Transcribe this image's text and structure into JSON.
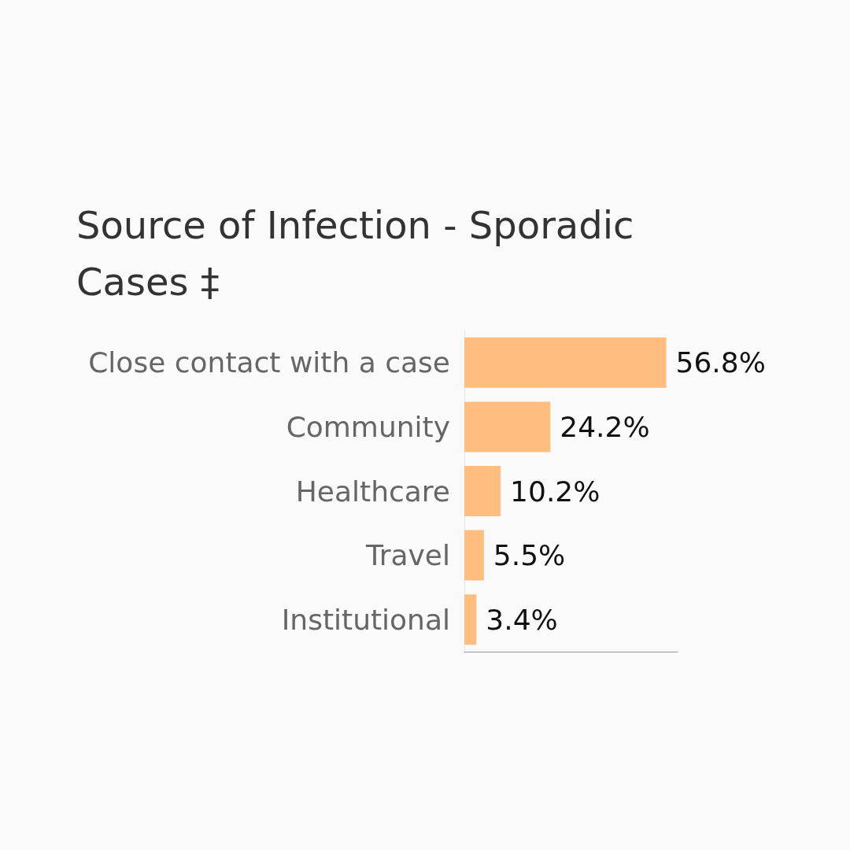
{
  "chart_data": {
    "type": "bar",
    "orientation": "horizontal",
    "title": "Source of Infection - Sporadic Cases ‡",
    "categories": [
      "Close contact with a case",
      "Community",
      "Healthcare",
      "Travel",
      "Institutional"
    ],
    "values": [
      56.8,
      24.2,
      10.2,
      5.5,
      3.4
    ],
    "value_labels": [
      "56.8%",
      "24.2%",
      "10.2%",
      "5.5%",
      "3.4%"
    ],
    "color": "#fdbe7f",
    "tick_labels": "y"
  }
}
